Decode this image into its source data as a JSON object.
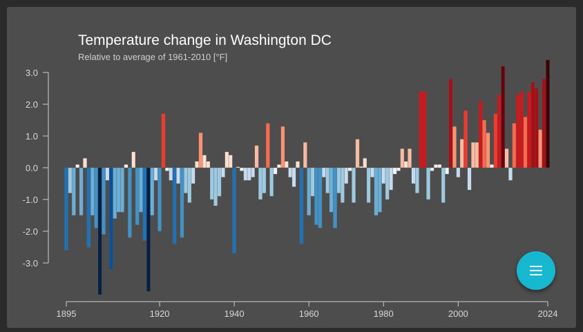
{
  "chart_data": {
    "type": "bar",
    "title": "Temperature change in Washington DC",
    "subtitle": "Relative to average of 1961-2010  [°F]",
    "xlabel": "",
    "ylabel": "",
    "ylim": [
      -4.0,
      3.5
    ],
    "yticks": [
      "3.0",
      "2.0",
      "1.0",
      "0.0",
      "-1.0",
      "-2.0",
      "-3.0"
    ],
    "ytick_values": [
      3,
      2,
      1,
      0,
      -1,
      -2,
      -3
    ],
    "xticks": [
      "1895",
      "1920",
      "1940",
      "1960",
      "1980",
      "2000",
      "2024"
    ],
    "xtick_values": [
      1895,
      1920,
      1940,
      1960,
      1980,
      2000,
      2024
    ],
    "x_start": 1895,
    "values": [
      -2.6,
      -0.8,
      -1.5,
      0.1,
      -1.5,
      0.3,
      -2.5,
      -1.5,
      -1.9,
      -4.0,
      -2.1,
      -0.4,
      -3.2,
      -1.6,
      -1.4,
      -1.4,
      0.1,
      -2.2,
      0.5,
      -1.8,
      -1.4,
      -2.3,
      -3.9,
      -1.5,
      -0.4,
      -2.0,
      1.7,
      -0.1,
      -0.4,
      -2.4,
      -0.5,
      -2.2,
      -0.8,
      -1.1,
      -0.5,
      0.2,
      1.1,
      0.4,
      0.2,
      -1.0,
      -1.2,
      -0.9,
      -0.3,
      0.5,
      0.4,
      -2.7,
      0.03,
      -0.1,
      -0.4,
      -0.4,
      -0.3,
      0.7,
      -1.0,
      -0.8,
      1.4,
      -0.9,
      -0.2,
      0.1,
      1.3,
      0.2,
      -0.3,
      -0.6,
      0.2,
      -2.4,
      0.8,
      -1.5,
      -0.9,
      -1.8,
      -1.9,
      -0.3,
      -0.8,
      -1.4,
      -1.9,
      -0.8,
      -1.1,
      -0.5,
      -0.1,
      -1.1,
      0.9,
      0.04,
      0.3,
      -1.1,
      -0.3,
      -1.5,
      -1.4,
      -0.5,
      -1.0,
      -0.7,
      -0.2,
      -0.1,
      0.6,
      0.2,
      0.6,
      -0.5,
      -0.8,
      2.4,
      2.4,
      -1.0,
      -0.1,
      0.1,
      0.1,
      -1.1,
      -0.2,
      2.8,
      1.3,
      -0.3,
      0.9,
      1.8,
      -0.7,
      0.8,
      0.8,
      2.1,
      1.5,
      1.1,
      0.1,
      1.7,
      2.3,
      3.2,
      0.6,
      -0.4,
      1.4,
      2.3,
      2.4,
      1.6,
      2.4,
      2.7,
      2.5,
      1.2,
      2.8,
      3.4
    ],
    "grid": false,
    "legend": "none"
  },
  "colors": {
    "background": "#4d4d4d",
    "cold_scale": [
      "#f0f5fb",
      "#c6dbef",
      "#9ecae1",
      "#6baed6",
      "#4292c6",
      "#2171b5",
      "#08519c",
      "#08306b",
      "#061f45"
    ],
    "warm_scale": [
      "#fff1ea",
      "#fee0d2",
      "#fcbba1",
      "#fc9272",
      "#fb6a4a",
      "#ef3b2c",
      "#cb181d",
      "#a50f15",
      "#67000d",
      "#3d0008"
    ],
    "fab": "#17b8cf"
  },
  "fab": {
    "icon": "menu-icon"
  }
}
